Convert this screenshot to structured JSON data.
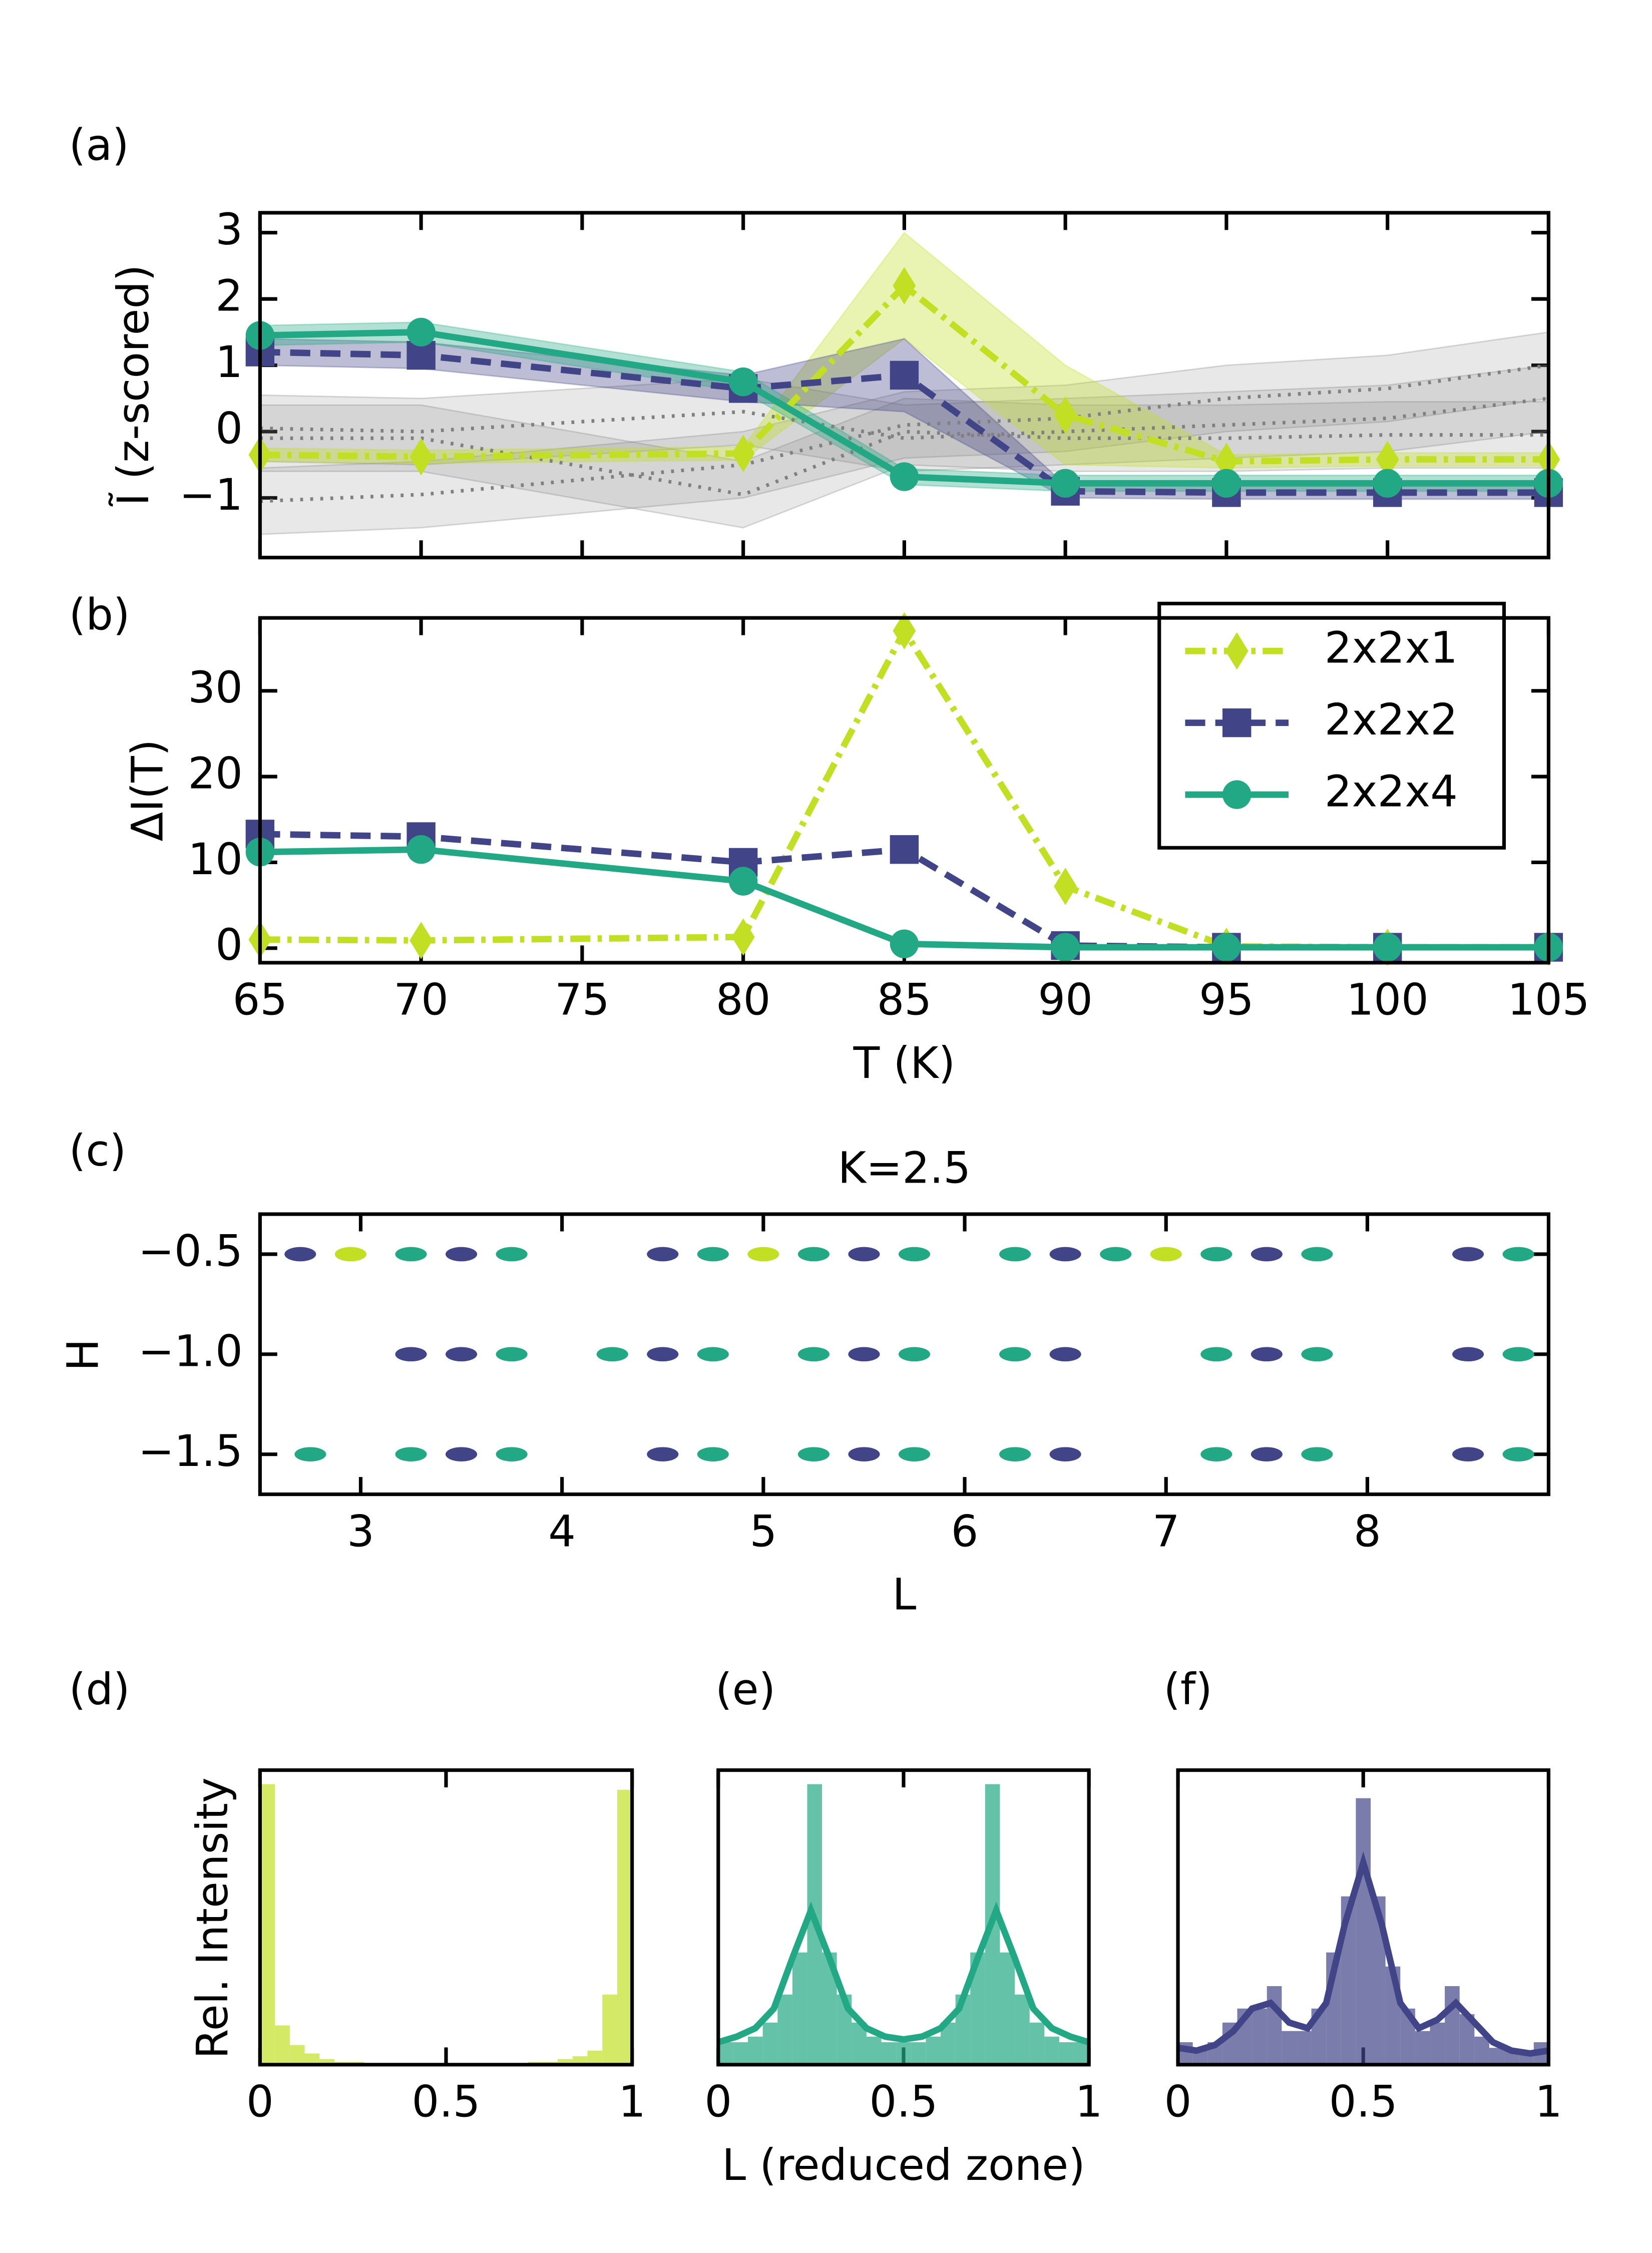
{
  "chart_data": [
    {
      "type": "line",
      "label": "(a)",
      "ylabel": "Ĩ (z-scored)",
      "x": [
        65,
        70,
        80,
        85,
        90,
        95,
        100,
        105
      ],
      "xlim": [
        65,
        105
      ],
      "xticks": [
        65,
        70,
        75,
        80,
        85,
        90,
        95,
        100,
        105
      ],
      "xticklabels": false,
      "ylim": [
        -1.9,
        3.3
      ],
      "yticks": [
        {
          "value": -1,
          "label": "−1"
        },
        0,
        1,
        2,
        3
      ],
      "series": [
        {
          "color": "#808080",
          "linestyle": "dotted",
          "values": [
            -1.05,
            -0.95,
            -0.5,
            0.1,
            0.2,
            0.5,
            0.65,
            1.0
          ],
          "lower": [
            -1.55,
            -1.45,
            -1.0,
            -0.4,
            -0.3,
            0.0,
            0.15,
            0.5
          ],
          "upper": [
            -0.55,
            -0.45,
            0.0,
            0.6,
            0.7,
            1.0,
            1.15,
            1.5
          ]
        },
        {
          "color": "#808080",
          "linestyle": "dotted",
          "values": [
            0.05,
            0.0,
            0.3,
            -0.1,
            0.0,
            0.1,
            0.2,
            0.5
          ],
          "lower": [
            -0.45,
            -0.5,
            -0.2,
            -0.6,
            -0.5,
            -0.4,
            -0.3,
            0.0
          ],
          "upper": [
            0.55,
            0.5,
            0.8,
            0.4,
            0.5,
            0.6,
            0.7,
            1.0
          ]
        },
        {
          "color": "#808080",
          "linestyle": "dotted",
          "values": [
            -0.1,
            -0.1,
            -0.95,
            0.0,
            -0.1,
            -0.1,
            -0.05,
            -0.05
          ],
          "lower": [
            -0.6,
            -0.6,
            -1.45,
            -0.5,
            -0.6,
            -0.6,
            -0.55,
            -0.55
          ],
          "upper": [
            0.4,
            0.4,
            -0.45,
            0.5,
            0.4,
            0.4,
            0.45,
            0.45
          ]
        },
        {
          "color": "#c2df23",
          "linestyle": "dashdot",
          "marker": "diamond",
          "values": [
            -0.35,
            -0.38,
            -0.33,
            2.2,
            0.25,
            -0.45,
            -0.42,
            -0.42
          ],
          "lower": [
            -0.45,
            -0.48,
            -0.43,
            1.4,
            -0.5,
            -0.55,
            -0.52,
            -0.52
          ],
          "upper": [
            -0.25,
            -0.28,
            -0.23,
            3.0,
            1.0,
            -0.35,
            -0.32,
            -0.32
          ]
        },
        {
          "color": "#414487",
          "linestyle": "dashed",
          "marker": "square",
          "values": [
            1.2,
            1.15,
            0.65,
            0.85,
            -0.9,
            -0.92,
            -0.92,
            -0.92
          ],
          "lower": [
            1.0,
            0.95,
            0.45,
            0.3,
            -1.0,
            -1.02,
            -1.02,
            -1.02
          ],
          "upper": [
            1.4,
            1.35,
            0.85,
            1.4,
            -0.8,
            -0.82,
            -0.82,
            -0.82
          ]
        },
        {
          "color": "#22a884",
          "linestyle": "solid",
          "marker": "circle",
          "values": [
            1.45,
            1.5,
            0.75,
            -0.68,
            -0.78,
            -0.78,
            -0.78,
            -0.78
          ],
          "lower": [
            1.3,
            1.35,
            0.6,
            -0.8,
            -0.9,
            -0.9,
            -0.9,
            -0.9
          ],
          "upper": [
            1.6,
            1.65,
            0.9,
            -0.56,
            -0.66,
            -0.66,
            -0.66,
            -0.66
          ]
        }
      ]
    },
    {
      "type": "line",
      "label": "(b)",
      "xlabel": "T (K)",
      "ylabel": "ΔI(T)",
      "x": [
        65,
        70,
        80,
        85,
        90,
        95,
        100,
        105
      ],
      "xlim": [
        65,
        105
      ],
      "xticks": [
        65,
        70,
        75,
        80,
        85,
        90,
        95,
        100,
        105
      ],
      "ylim": [
        -1.7,
        38.5
      ],
      "yticks": [
        0,
        10,
        20,
        30
      ],
      "legend": "upper right",
      "series": [
        {
          "name": "2x2x1",
          "color": "#c2df23",
          "linestyle": "dashdot",
          "marker": "diamond",
          "values": [
            1.0,
            0.9,
            1.3,
            37,
            7.2,
            0.2,
            0.1,
            0.1
          ]
        },
        {
          "name": "2x2x2",
          "color": "#414487",
          "linestyle": "dashed",
          "marker": "square",
          "values": [
            13.3,
            13.0,
            10.0,
            11.5,
            0.3,
            0.1,
            0.1,
            0.1
          ]
        },
        {
          "name": "2x2x4",
          "color": "#22a884",
          "linestyle": "solid",
          "marker": "circle",
          "values": [
            11.2,
            11.5,
            7.8,
            0.5,
            0.1,
            0.1,
            0.1,
            0.1
          ]
        }
      ]
    },
    {
      "type": "scatter",
      "label": "(c)",
      "title": "K=2.5",
      "xlabel": "L",
      "ylabel": "H",
      "xlim": [
        2.5,
        8.9
      ],
      "xticks": [
        3,
        4,
        5,
        6,
        7,
        8
      ],
      "ylim": [
        -1.7,
        -0.3
      ],
      "yticks": [
        {
          "value": -0.5,
          "label": "−0.5"
        },
        {
          "value": -1.0,
          "label": "−1.0"
        },
        {
          "value": -1.5,
          "label": "−1.5"
        }
      ],
      "series": [
        {
          "color": "#c2df23",
          "x": [
            2.95,
            5.0,
            7.0
          ],
          "y": [
            -0.5,
            -0.5,
            -0.5
          ]
        },
        {
          "color": "#414487",
          "x": [
            2.7,
            3.5,
            4.5,
            5.5,
            6.5,
            7.5,
            8.5,
            3.25,
            3.5,
            4.5,
            5.5,
            6.5,
            7.5,
            8.5,
            3.5,
            4.5,
            5.5,
            6.5,
            7.5,
            8.5
          ],
          "y": [
            -0.5,
            -0.5,
            -0.5,
            -0.5,
            -0.5,
            -0.5,
            -0.5,
            -1.0,
            -1.0,
            -1.0,
            -1.0,
            -1.0,
            -1.0,
            -1.0,
            -1.5,
            -1.5,
            -1.5,
            -1.5,
            -1.5,
            -1.5
          ]
        },
        {
          "color": "#22a884",
          "x": [
            3.25,
            3.75,
            4.75,
            5.25,
            5.75,
            6.25,
            6.75,
            7.25,
            7.75,
            8.75,
            3.75,
            4.25,
            4.75,
            5.25,
            5.75,
            6.25,
            7.25,
            7.75,
            8.75,
            2.75,
            3.25,
            3.75,
            4.75,
            5.25,
            5.75,
            6.25,
            7.25,
            7.75,
            8.75
          ],
          "y": [
            -0.5,
            -0.5,
            -0.5,
            -0.5,
            -0.5,
            -0.5,
            -0.5,
            -0.5,
            -0.5,
            -0.5,
            -1.0,
            -1.0,
            -1.0,
            -1.0,
            -1.0,
            -1.0,
            -1.0,
            -1.0,
            -1.0,
            -1.5,
            -1.5,
            -1.5,
            -1.5,
            -1.5,
            -1.5,
            -1.5,
            -1.5,
            -1.5,
            -1.5
          ]
        }
      ]
    },
    {
      "type": "histogram",
      "label": "(d)",
      "ylabel": "Rel. Intensity",
      "color": "#c2df23",
      "xlim": [
        0,
        1
      ],
      "xticks": [
        0,
        0.5,
        1
      ],
      "ylim": [
        0,
        1.05
      ],
      "bins": [
        0,
        0.04,
        0.08,
        0.12,
        0.16,
        0.2,
        0.24,
        0.28,
        0.32,
        0.36,
        0.4,
        0.44,
        0.48,
        0.52,
        0.56,
        0.6,
        0.64,
        0.68,
        0.72,
        0.76,
        0.8,
        0.84,
        0.88,
        0.92,
        0.96,
        1
      ],
      "counts": [
        1.0,
        0.14,
        0.07,
        0.04,
        0.02,
        0.01,
        0.01,
        0.005,
        0.005,
        0.005,
        0.005,
        0.003,
        0.003,
        0.003,
        0.003,
        0.005,
        0.005,
        0.005,
        0.01,
        0.01,
        0.02,
        0.03,
        0.05,
        0.25,
        0.98
      ]
    },
    {
      "type": "histogram",
      "label": "(e)",
      "xlabel": "L (reduced zone)",
      "color": "#22a884",
      "xlim": [
        0,
        1
      ],
      "xticks": [
        0,
        0.5,
        1
      ],
      "ylim": [
        0,
        1.05
      ],
      "bins": [
        0,
        0.04,
        0.08,
        0.12,
        0.16,
        0.2,
        0.24,
        0.28,
        0.32,
        0.36,
        0.4,
        0.44,
        0.48,
        0.52,
        0.56,
        0.6,
        0.64,
        0.68,
        0.72,
        0.76,
        0.8,
        0.84,
        0.88,
        0.92,
        0.96,
        1
      ],
      "counts": [
        0.08,
        0.08,
        0.1,
        0.15,
        0.25,
        0.4,
        1.0,
        0.4,
        0.25,
        0.15,
        0.1,
        0.08,
        0.08,
        0.08,
        0.1,
        0.15,
        0.25,
        0.4,
        1.0,
        0.4,
        0.25,
        0.15,
        0.1,
        0.08,
        0.08
      ],
      "curve": {
        "x": [
          0,
          0.05,
          0.1,
          0.15,
          0.2,
          0.25,
          0.3,
          0.35,
          0.4,
          0.45,
          0.5,
          0.55,
          0.6,
          0.65,
          0.7,
          0.75,
          0.8,
          0.85,
          0.9,
          0.95,
          1.0
        ],
        "y": [
          0.08,
          0.1,
          0.13,
          0.2,
          0.38,
          0.55,
          0.38,
          0.2,
          0.13,
          0.1,
          0.09,
          0.1,
          0.13,
          0.2,
          0.38,
          0.55,
          0.38,
          0.2,
          0.13,
          0.1,
          0.08
        ]
      }
    },
    {
      "type": "histogram",
      "label": "(f)",
      "color": "#414487",
      "xlim": [
        0,
        1
      ],
      "xticks": [
        0,
        0.5,
        1
      ],
      "ylim": [
        0,
        1.05
      ],
      "bins": [
        0,
        0.04,
        0.08,
        0.12,
        0.16,
        0.2,
        0.24,
        0.28,
        0.32,
        0.36,
        0.4,
        0.44,
        0.48,
        0.52,
        0.56,
        0.6,
        0.64,
        0.68,
        0.72,
        0.76,
        0.8,
        0.84,
        0.88,
        0.92,
        0.96,
        1
      ],
      "counts": [
        0.08,
        0.05,
        0.08,
        0.15,
        0.2,
        0.2,
        0.28,
        0.12,
        0.12,
        0.2,
        0.4,
        0.6,
        0.95,
        0.6,
        0.35,
        0.2,
        0.12,
        0.15,
        0.28,
        0.18,
        0.1,
        0.06,
        0.05,
        0.05,
        0.08
      ],
      "curve": {
        "x": [
          0,
          0.05,
          0.1,
          0.15,
          0.2,
          0.25,
          0.3,
          0.35,
          0.4,
          0.45,
          0.5,
          0.55,
          0.6,
          0.65,
          0.7,
          0.75,
          0.8,
          0.85,
          0.9,
          0.95,
          1.0
        ],
        "y": [
          0.06,
          0.05,
          0.07,
          0.12,
          0.2,
          0.22,
          0.15,
          0.13,
          0.22,
          0.5,
          0.72,
          0.5,
          0.22,
          0.13,
          0.16,
          0.22,
          0.15,
          0.08,
          0.05,
          0.04,
          0.05
        ]
      }
    }
  ]
}
